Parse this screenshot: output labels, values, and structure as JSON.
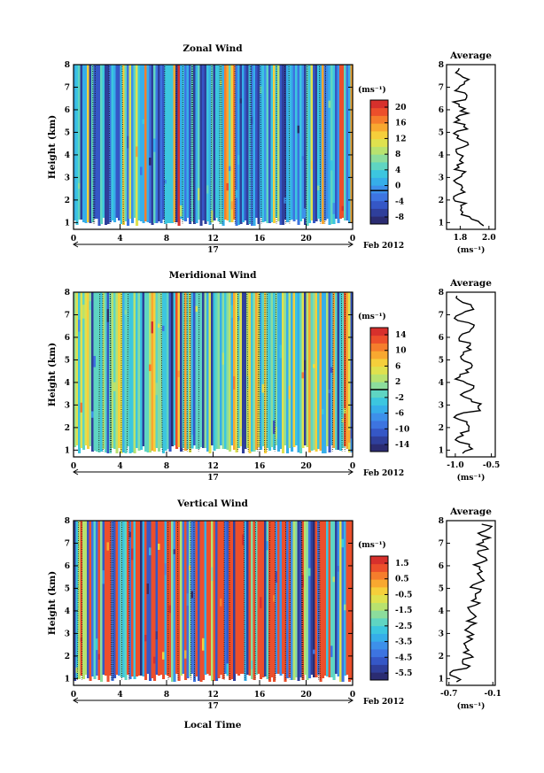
{
  "common": {
    "xticks": [
      "0",
      "4",
      "8",
      "12",
      "16",
      "20",
      "0"
    ],
    "day_label": "17",
    "date_label": "Feb 2012",
    "ylabel": "Height (km)",
    "yticks": [
      "1",
      "2",
      "3",
      "4",
      "5",
      "6",
      "7",
      "8"
    ],
    "unit": "(ms⁻¹)",
    "avg_title": "Average",
    "xlabel_bottom": "Local Time"
  },
  "chart_data": [
    {
      "type": "heatmap",
      "title": "Zonal Wind",
      "xlabel": "",
      "ylabel": "Height (km)",
      "xlim": [
        0,
        24
      ],
      "ylim": [
        0.7,
        8
      ],
      "colorbar": {
        "ticks": [
          "20",
          "16",
          "12",
          "8",
          "4",
          "0",
          "-4",
          "-8"
        ],
        "range": [
          -10,
          22
        ]
      },
      "average": {
        "title": "Average",
        "xlim": [
          1.7,
          2.05
        ],
        "xticks": [
          "1.8",
          "2.0"
        ],
        "xlabel": "(ms⁻¹)"
      }
    },
    {
      "type": "heatmap",
      "title": "Meridional Wind",
      "xlabel": "",
      "ylabel": "Height (km)",
      "xlim": [
        0,
        24
      ],
      "ylim": [
        0.7,
        8
      ],
      "colorbar": {
        "ticks": [
          "14",
          "10",
          "6",
          "2",
          "-2",
          "-6",
          "-10",
          "-14"
        ],
        "range": [
          -16,
          16
        ]
      },
      "average": {
        "title": "Average",
        "xlim": [
          -1.1,
          -0.45
        ],
        "xticks": [
          "-1.0",
          "-0.5"
        ],
        "xlabel": "(ms⁻¹)"
      }
    },
    {
      "type": "heatmap",
      "title": "Vertical Wind",
      "xlabel": "Local Time",
      "ylabel": "Height (km)",
      "xlim": [
        0,
        24
      ],
      "ylim": [
        0.7,
        8
      ],
      "colorbar": {
        "ticks": [
          "1.5",
          "0.5",
          "-0.5",
          "-1.5",
          "-2.5",
          "-3.5",
          "-4.5",
          "-5.5"
        ],
        "range": [
          -6,
          2
        ]
      },
      "average": {
        "title": "Average",
        "xlim": [
          -0.7,
          -0.1
        ],
        "xticks": [
          "-0.7",
          "-0.1"
        ],
        "xlabel": "(ms⁻¹)"
      }
    }
  ]
}
